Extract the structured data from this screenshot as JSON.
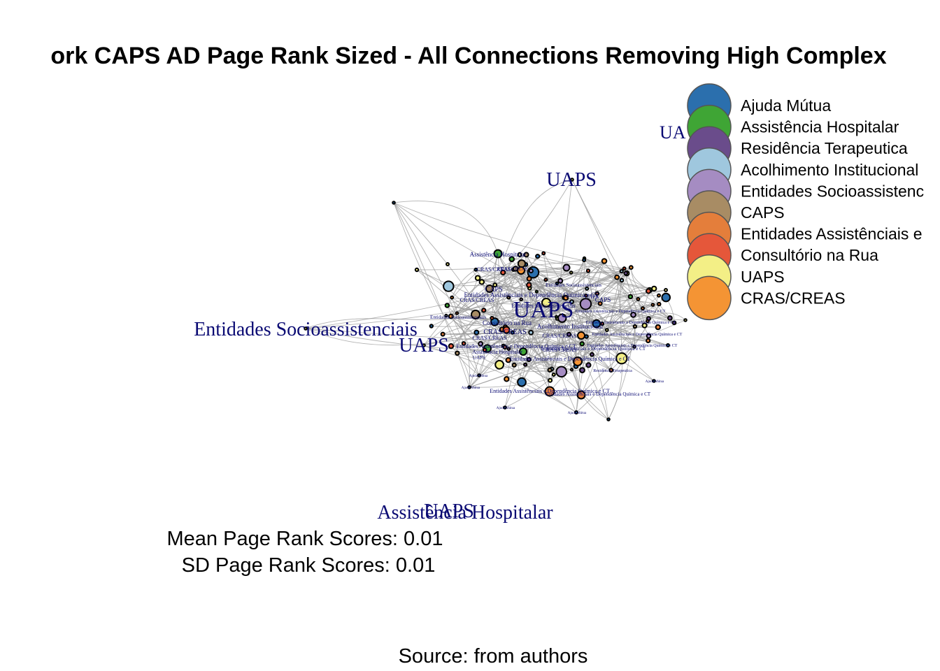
{
  "title": "ork CAPS AD Page Rank Sized - All Connections Removing High Complex",
  "mean_text": "Mean Page Rank Scores: 0.01",
  "sd_text": "SD Page Rank Scores: 0.01",
  "source_text": "Source: from authors",
  "legend": [
    {
      "label": "Ajuda Mútua",
      "color": "#2b6fad"
    },
    {
      "label": "Assistência Hospitalar",
      "color": "#3fa535"
    },
    {
      "label": "Residência Terapeutica",
      "color": "#6a4c8b"
    },
    {
      "label": "Acolhimento Institucional",
      "color": "#9fc7de"
    },
    {
      "label": "Entidades Socioassistenc",
      "color": "#a58cc2"
    },
    {
      "label": "CAPS",
      "color": "#a88c64"
    },
    {
      "label": "Entidades Assistênciais e",
      "color": "#e47e3b"
    },
    {
      "label": "Consultório na Rua",
      "color": "#e5573a"
    },
    {
      "label": "UAPS",
      "color": "#f3ef86"
    },
    {
      "label": "CRAS/CREAS",
      "color": "#f49434"
    }
  ],
  "big_labels": [
    {
      "text": "UA",
      "size": 26
    },
    {
      "text": "UAPS",
      "size": 28
    },
    {
      "text": "Entidades Socioassistenciais",
      "size": 28
    },
    {
      "text": "UAPS",
      "size": 28
    },
    {
      "text": "UAPS",
      "size": 34
    },
    {
      "text": "UAPS",
      "size": 28
    },
    {
      "text": "Assistência Hospitalar",
      "size": 28
    }
  ],
  "small_labels": [
    "Assistência Hospitalar",
    "CRAS/CREAS",
    "CAPS",
    "Entidades Assistênciais e Dependência Química e CT",
    "CRAS/CREAS",
    "Entidades Socioassistenciais",
    "Entidades Socioassistenciais",
    "Consultório na Rua",
    "Acolhimento Institucional",
    "CRAS/CREAS",
    "CRAS/CREAS",
    "Entidades Assistênciais e Dependência Química e CT",
    "Assistência Hospitalar",
    "Entidades Assistênciais e Dependência Química e CT",
    "CRAS/CREAS",
    "Entidades Assistênciais e Dependência Química e CT",
    "Entidades Assistênciais e Dependência Química e CT",
    "UAPS",
    "Ajuda Mútua",
    "Ajuda Mútua",
    "Ajuda Mútua",
    "Ajuda Mútua",
    "Ajuda Mútua",
    "Residência Terapeutica",
    "Entidades Assistênciais e Dependência Química e CT",
    "Entidades Assistênciais e Dependência Química e CT",
    "CAPS",
    "Entidades Assistênciais e Dependência Química e CT",
    "Entidades Assistênciais e Dependência Química e CT",
    "CRAS/CREAS",
    "Entidades Socioassistenciais",
    "Entidades Assistênciais e Dependência Química e CT",
    "CRAS/CREAS",
    "CAPS"
  ]
}
